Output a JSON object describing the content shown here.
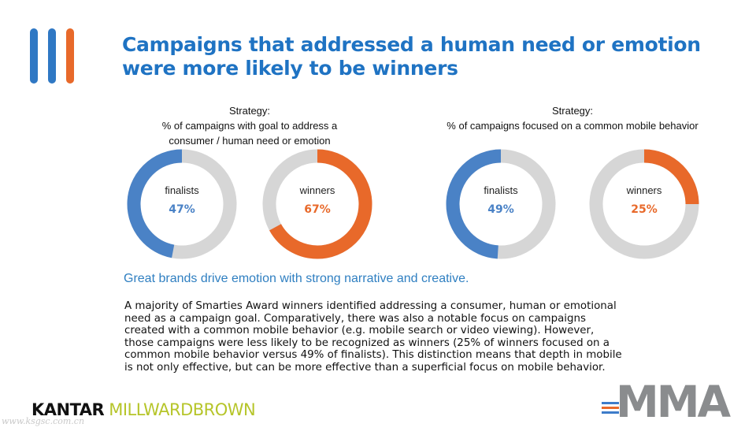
{
  "colors": {
    "blue": "#2f78c4",
    "orange": "#e8692a",
    "finalists_ring": "#4a82c6",
    "winners_ring": "#e8692a",
    "track": "#d6d6d6",
    "title": "#1f73c3",
    "subhead": "#2f7fc1",
    "mma_lines": [
      "#3d7cc9",
      "#e8692a",
      "#3d7cc9"
    ]
  },
  "header": {
    "title_lines": [
      "Campaigns that addressed a human need or emotion",
      "were more likely to be winners"
    ]
  },
  "captions": {
    "left": [
      "Strategy:",
      "% of campaigns with goal to address a",
      "consumer / human need or emotion"
    ],
    "right": [
      "Strategy:",
      "% of campaigns focused on a common mobile behavior"
    ]
  },
  "chart_data": [
    {
      "type": "pie",
      "subtype": "donut",
      "title": "Strategy: % of campaigns with goal to address a consumer / human need or emotion",
      "series": [
        {
          "name": "finalists",
          "value": 47,
          "label": "47%",
          "color": "#4a82c6"
        },
        {
          "name": "winners",
          "value": 67,
          "label": "67%",
          "color": "#e8692a"
        }
      ]
    },
    {
      "type": "pie",
      "subtype": "donut",
      "title": "Strategy: % of campaigns focused on a common mobile behavior",
      "series": [
        {
          "name": "finalists",
          "value": 49,
          "label": "49%",
          "color": "#4a82c6"
        },
        {
          "name": "winners",
          "value": 25,
          "label": "25%",
          "color": "#e8692a"
        }
      ]
    }
  ],
  "subhead": "Great brands drive emotion with strong narrative and creative.",
  "body_lines": [
    "A majority of Smarties Award winners identified addressing a consumer, human or emotional",
    "need as a campaign goal. Comparatively, there was also a notable focus on campaigns",
    "created with a common mobile behavior (e.g. mobile search or video viewing). However,",
    "those campaigns were less likely to be recognized as winners (25% of winners focused on a",
    "common mobile behavior versus 49% of finalists). This distinction means that depth in mobile",
    "is not only effective, but can be more effective than a superficial focus on mobile behavior."
  ],
  "footer": {
    "kantar": "KANTAR",
    "millward": "MILLWARDBROWN",
    "watermark": "www.ksgsc.com.cn",
    "mma": "MMA"
  },
  "logo_bar_colors": [
    "#2f78c4",
    "#2f78c4",
    "#e8692a"
  ]
}
